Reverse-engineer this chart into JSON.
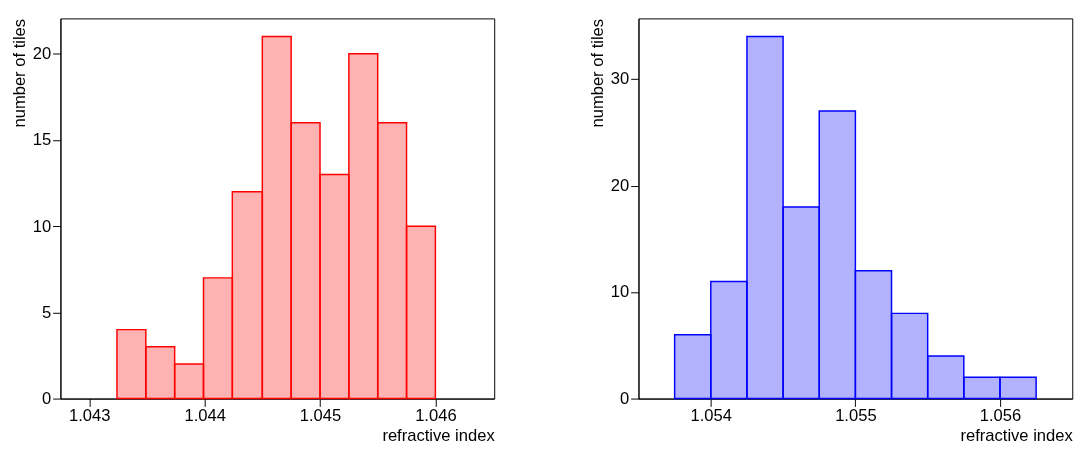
{
  "chart_data": [
    {
      "type": "histogram",
      "xlabel": "refractive index",
      "ylabel": "number of tiles",
      "bins": [
        1.04324,
        1.04349,
        1.04374,
        1.04399,
        1.04424,
        1.0445,
        1.04475,
        1.045,
        1.04525,
        1.0455,
        1.04575,
        1.046
      ],
      "values": [
        4,
        3,
        2,
        7,
        12,
        21,
        16,
        13,
        20,
        16,
        10
      ],
      "color": "#ff0000",
      "xlim": [
        1.04275,
        1.04651
      ],
      "xticks": [
        1.043,
        1.044,
        1.045,
        1.046
      ],
      "ylim": [
        0,
        22.05
      ],
      "yticks": [
        0,
        5,
        10,
        15,
        20
      ],
      "grid": false
    },
    {
      "type": "histogram",
      "xlabel": "refractive index",
      "ylabel": "number of tiles",
      "bins": [
        1.05375,
        1.054,
        1.05425,
        1.0545,
        1.05475,
        1.055,
        1.05525,
        1.0555,
        1.05575,
        1.056,
        1.05625
      ],
      "values": [
        6,
        11,
        34,
        18,
        27,
        12,
        8,
        4,
        2,
        2
      ],
      "color": "#0000ff",
      "xlim": [
        1.0535,
        1.0565
      ],
      "xticks": [
        1.054,
        1.055,
        1.056
      ],
      "ylim": [
        0,
        35.7
      ],
      "yticks": [
        0,
        10,
        20,
        30
      ],
      "grid": false
    }
  ]
}
